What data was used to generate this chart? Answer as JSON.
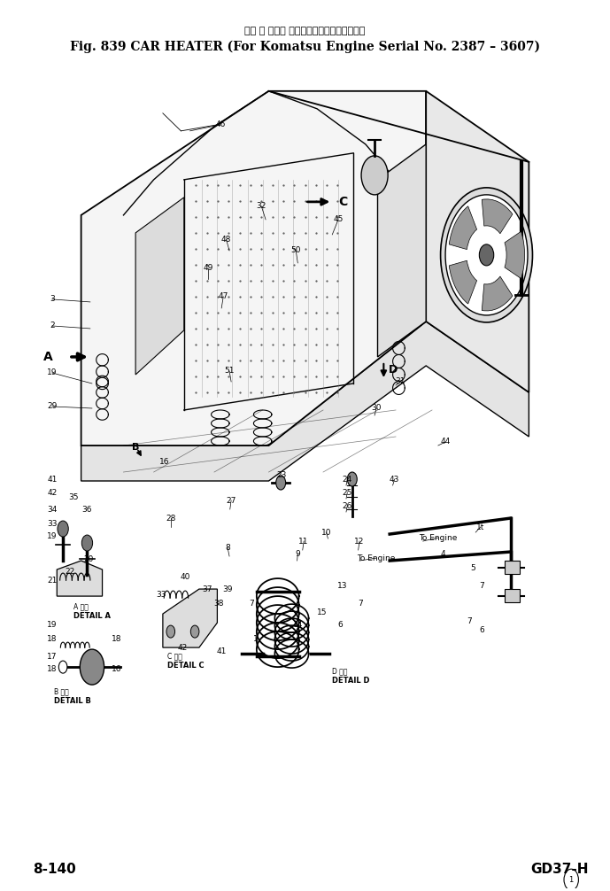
{
  "title_line1": "カー ヒ ータ（ 小機エンジン用　適用号機：",
  "title_line2": "Fig. 839 CAR HEATER (For Komatsu Engine Serial No. 2387 ~ 3607)",
  "footer_left": "8-140",
  "footer_right": "GD37-H",
  "background_color": "#ffffff",
  "text_color": "#000000",
  "fig_width": 6.89,
  "fig_height": 10.06,
  "dpi": 100
}
